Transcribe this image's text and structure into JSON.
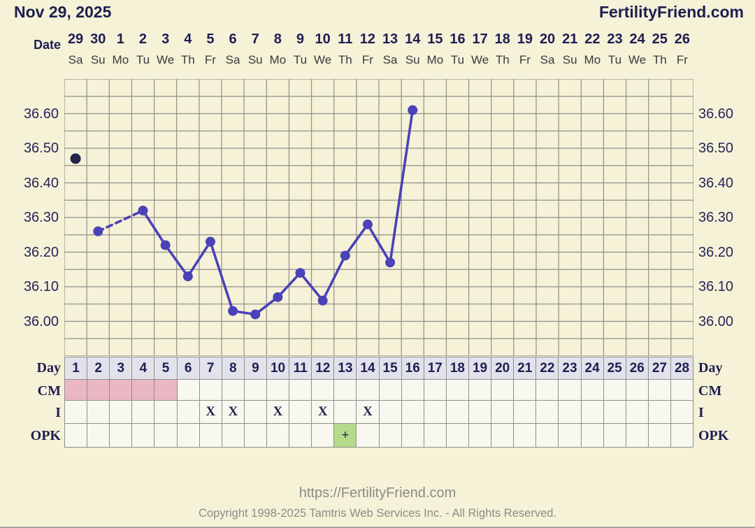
{
  "header": {
    "title": "Nov 29, 2025",
    "brand": "FertilityFriend.com"
  },
  "axis": {
    "date_label": "Date",
    "dates": [
      "29",
      "30",
      "1",
      "2",
      "3",
      "4",
      "5",
      "6",
      "7",
      "8",
      "9",
      "10",
      "11",
      "12",
      "13",
      "14",
      "15",
      "16",
      "17",
      "18",
      "19",
      "20",
      "21",
      "22",
      "23",
      "24",
      "25",
      "26"
    ],
    "weekdays": [
      "Sa",
      "Su",
      "Mo",
      "Tu",
      "We",
      "Th",
      "Fr",
      "Sa",
      "Su",
      "Mo",
      "Tu",
      "We",
      "Th",
      "Fr",
      "Sa",
      "Su",
      "Mo",
      "Tu",
      "We",
      "Th",
      "Fr",
      "Sa",
      "Su",
      "Mo",
      "Tu",
      "We",
      "Th",
      "Fr"
    ]
  },
  "chart_data": {
    "type": "line",
    "title": "Basal body temperature chart",
    "x_days": 28,
    "ylim": [
      35.9,
      36.7
    ],
    "y_minor_step": 0.05,
    "yticks": [
      "36.00",
      "36.10",
      "36.20",
      "36.30",
      "36.40",
      "36.50",
      "36.60"
    ],
    "ytick_values": [
      36.0,
      36.1,
      36.2,
      36.3,
      36.4,
      36.5,
      36.6
    ],
    "grid": true,
    "series": [
      {
        "name": "temperature",
        "points": [
          {
            "day": 1,
            "temp": 36.47,
            "discarded": true
          },
          {
            "day": 2,
            "temp": 36.26
          },
          {
            "day": 4,
            "temp": 36.32
          },
          {
            "day": 5,
            "temp": 36.22
          },
          {
            "day": 6,
            "temp": 36.13
          },
          {
            "day": 7,
            "temp": 36.23
          },
          {
            "day": 8,
            "temp": 36.03
          },
          {
            "day": 9,
            "temp": 36.02
          },
          {
            "day": 10,
            "temp": 36.07
          },
          {
            "day": 11,
            "temp": 36.14
          },
          {
            "day": 12,
            "temp": 36.06
          },
          {
            "day": 13,
            "temp": 36.19
          },
          {
            "day": 14,
            "temp": 36.28
          },
          {
            "day": 15,
            "temp": 36.17
          },
          {
            "day": 16,
            "temp": 36.61
          }
        ]
      }
    ]
  },
  "table": {
    "labels": {
      "day": "Day",
      "cm": "CM",
      "i": "I",
      "opk": "OPK"
    },
    "day_numbers": [
      "1",
      "2",
      "3",
      "4",
      "5",
      "6",
      "7",
      "8",
      "9",
      "10",
      "11",
      "12",
      "13",
      "14",
      "15",
      "16",
      "17",
      "18",
      "19",
      "20",
      "21",
      "22",
      "23",
      "24",
      "25",
      "26",
      "27",
      "28"
    ],
    "cm_days": [
      1,
      2,
      3,
      4,
      5
    ],
    "intercourse_days": [
      7,
      8,
      10,
      12,
      14
    ],
    "intercourse_mark": "X",
    "opk_positive_days": [
      13
    ],
    "opk_positive_mark": "+"
  },
  "colors": {
    "background": "#f5f2d8",
    "navy_text": "#1e1e52",
    "line": "#4a42b8",
    "discarded_dot": "#23234e",
    "grid_line": "#8f8f87",
    "day_header_bg": "#e2e2ec",
    "cm_pink": "#eab7c4",
    "opk_green": "#b4da8b",
    "cell_bg": "#f8f8f1",
    "footer_gray": "#8c8c85"
  },
  "footer": {
    "url": "https://FertilityFriend.com",
    "copyright": "Copyright 1998-2025 Tamtris Web Services Inc. - All Rights Reserved."
  }
}
